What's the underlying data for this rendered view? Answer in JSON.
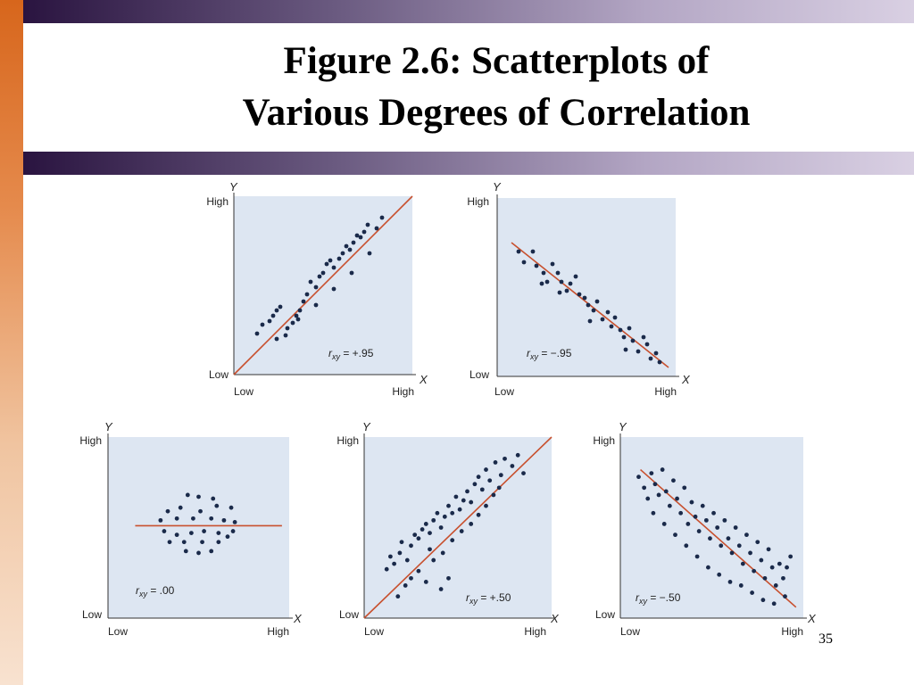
{
  "slide": {
    "title_lines": [
      "Figure 2.6: Scatterplots of",
      "Various Degrees of Correlation"
    ],
    "page_number": "35"
  },
  "colors": {
    "panel_background": "#dde6f2",
    "point": "#1a2a4a",
    "trend_line": "#c8502e",
    "header_band": "#5a4a72"
  },
  "chart_data": [
    {
      "type": "scatter",
      "xlabel": "X",
      "ylabel": "Y",
      "x_ticks": [
        "Low",
        "High"
      ],
      "y_ticks": [
        "Low",
        "High"
      ],
      "xlim": [
        0,
        1
      ],
      "ylim": [
        0,
        1
      ],
      "annotation": {
        "prefix": "r",
        "subscript": "xy",
        "value": " = +.95"
      },
      "trend_line": [
        [
          0.0,
          0.0
        ],
        [
          1.0,
          1.0
        ]
      ],
      "points": [
        [
          0.13,
          0.23
        ],
        [
          0.16,
          0.28
        ],
        [
          0.2,
          0.3
        ],
        [
          0.22,
          0.33
        ],
        [
          0.24,
          0.36
        ],
        [
          0.26,
          0.38
        ],
        [
          0.24,
          0.2
        ],
        [
          0.29,
          0.22
        ],
        [
          0.3,
          0.26
        ],
        [
          0.33,
          0.29
        ],
        [
          0.35,
          0.33
        ],
        [
          0.37,
          0.36
        ],
        [
          0.39,
          0.41
        ],
        [
          0.41,
          0.45
        ],
        [
          0.43,
          0.52
        ],
        [
          0.46,
          0.49
        ],
        [
          0.48,
          0.55
        ],
        [
          0.5,
          0.57
        ],
        [
          0.52,
          0.62
        ],
        [
          0.54,
          0.64
        ],
        [
          0.56,
          0.6
        ],
        [
          0.59,
          0.65
        ],
        [
          0.61,
          0.68
        ],
        [
          0.63,
          0.72
        ],
        [
          0.65,
          0.7
        ],
        [
          0.67,
          0.74
        ],
        [
          0.69,
          0.78
        ],
        [
          0.71,
          0.77
        ],
        [
          0.73,
          0.8
        ],
        [
          0.75,
          0.84
        ],
        [
          0.8,
          0.82
        ],
        [
          0.83,
          0.88
        ],
        [
          0.76,
          0.68
        ],
        [
          0.66,
          0.57
        ],
        [
          0.56,
          0.48
        ],
        [
          0.46,
          0.39
        ],
        [
          0.36,
          0.31
        ]
      ]
    },
    {
      "type": "scatter",
      "xlabel": "X",
      "ylabel": "Y",
      "x_ticks": [
        "Low",
        "High"
      ],
      "y_ticks": [
        "Low",
        "High"
      ],
      "xlim": [
        0,
        1
      ],
      "ylim": [
        0,
        1
      ],
      "annotation": {
        "prefix": "r",
        "subscript": "xy",
        "value": " = −.95"
      },
      "trend_line": [
        [
          0.08,
          0.75
        ],
        [
          0.96,
          0.05
        ]
      ],
      "points": [
        [
          0.12,
          0.7
        ],
        [
          0.15,
          0.64
        ],
        [
          0.2,
          0.7
        ],
        [
          0.22,
          0.62
        ],
        [
          0.26,
          0.58
        ],
        [
          0.28,
          0.53
        ],
        [
          0.31,
          0.63
        ],
        [
          0.34,
          0.58
        ],
        [
          0.36,
          0.53
        ],
        [
          0.39,
          0.48
        ],
        [
          0.41,
          0.52
        ],
        [
          0.44,
          0.56
        ],
        [
          0.46,
          0.46
        ],
        [
          0.49,
          0.44
        ],
        [
          0.51,
          0.4
        ],
        [
          0.54,
          0.37
        ],
        [
          0.56,
          0.42
        ],
        [
          0.59,
          0.32
        ],
        [
          0.62,
          0.36
        ],
        [
          0.64,
          0.28
        ],
        [
          0.66,
          0.33
        ],
        [
          0.69,
          0.26
        ],
        [
          0.71,
          0.22
        ],
        [
          0.74,
          0.27
        ],
        [
          0.76,
          0.2
        ],
        [
          0.79,
          0.14
        ],
        [
          0.82,
          0.22
        ],
        [
          0.84,
          0.18
        ],
        [
          0.86,
          0.1
        ],
        [
          0.89,
          0.13
        ],
        [
          0.91,
          0.08
        ],
        [
          0.52,
          0.31
        ],
        [
          0.72,
          0.15
        ],
        [
          0.35,
          0.47
        ],
        [
          0.25,
          0.52
        ]
      ]
    },
    {
      "type": "scatter",
      "xlabel": "X",
      "ylabel": "Y",
      "x_ticks": [
        "Low",
        "High"
      ],
      "y_ticks": [
        "Low",
        "High"
      ],
      "xlim": [
        0,
        1
      ],
      "ylim": [
        0,
        1
      ],
      "annotation": {
        "prefix": "r",
        "subscript": "xy",
        "value": " = .00"
      },
      "trend_line": [
        [
          0.15,
          0.51
        ],
        [
          0.96,
          0.51
        ]
      ],
      "points": [
        [
          0.44,
          0.68
        ],
        [
          0.5,
          0.67
        ],
        [
          0.58,
          0.66
        ],
        [
          0.33,
          0.59
        ],
        [
          0.4,
          0.61
        ],
        [
          0.51,
          0.59
        ],
        [
          0.6,
          0.62
        ],
        [
          0.68,
          0.61
        ],
        [
          0.29,
          0.54
        ],
        [
          0.38,
          0.55
        ],
        [
          0.47,
          0.55
        ],
        [
          0.57,
          0.55
        ],
        [
          0.64,
          0.54
        ],
        [
          0.7,
          0.53
        ],
        [
          0.31,
          0.48
        ],
        [
          0.38,
          0.46
        ],
        [
          0.46,
          0.47
        ],
        [
          0.53,
          0.48
        ],
        [
          0.61,
          0.47
        ],
        [
          0.69,
          0.48
        ],
        [
          0.34,
          0.42
        ],
        [
          0.42,
          0.42
        ],
        [
          0.52,
          0.42
        ],
        [
          0.61,
          0.42
        ],
        [
          0.66,
          0.45
        ],
        [
          0.43,
          0.37
        ],
        [
          0.5,
          0.36
        ],
        [
          0.57,
          0.37
        ]
      ]
    },
    {
      "type": "scatter",
      "xlabel": "X",
      "ylabel": "Y",
      "x_ticks": [
        "Low",
        "High"
      ],
      "y_ticks": [
        "Low",
        "High"
      ],
      "xlim": [
        0,
        1
      ],
      "ylim": [
        0,
        1
      ],
      "annotation": {
        "prefix": "r",
        "subscript": "xy",
        "value": " = +.50"
      },
      "trend_line": [
        [
          0.0,
          0.0
        ],
        [
          1.0,
          1.0
        ]
      ],
      "points": [
        [
          0.12,
          0.27
        ],
        [
          0.14,
          0.34
        ],
        [
          0.16,
          0.3
        ],
        [
          0.19,
          0.36
        ],
        [
          0.2,
          0.42
        ],
        [
          0.23,
          0.32
        ],
        [
          0.25,
          0.4
        ],
        [
          0.27,
          0.46
        ],
        [
          0.29,
          0.44
        ],
        [
          0.31,
          0.49
        ],
        [
          0.33,
          0.52
        ],
        [
          0.35,
          0.47
        ],
        [
          0.37,
          0.54
        ],
        [
          0.39,
          0.58
        ],
        [
          0.41,
          0.5
        ],
        [
          0.43,
          0.56
        ],
        [
          0.45,
          0.62
        ],
        [
          0.47,
          0.58
        ],
        [
          0.49,
          0.67
        ],
        [
          0.51,
          0.6
        ],
        [
          0.53,
          0.65
        ],
        [
          0.55,
          0.7
        ],
        [
          0.57,
          0.64
        ],
        [
          0.59,
          0.74
        ],
        [
          0.61,
          0.78
        ],
        [
          0.63,
          0.71
        ],
        [
          0.65,
          0.82
        ],
        [
          0.67,
          0.76
        ],
        [
          0.7,
          0.86
        ],
        [
          0.73,
          0.79
        ],
        [
          0.75,
          0.88
        ],
        [
          0.79,
          0.84
        ],
        [
          0.82,
          0.9
        ],
        [
          0.85,
          0.8
        ],
        [
          0.29,
          0.26
        ],
        [
          0.33,
          0.2
        ],
        [
          0.37,
          0.32
        ],
        [
          0.42,
          0.36
        ],
        [
          0.47,
          0.43
        ],
        [
          0.52,
          0.48
        ],
        [
          0.57,
          0.52
        ],
        [
          0.61,
          0.57
        ],
        [
          0.65,
          0.62
        ],
        [
          0.69,
          0.68
        ],
        [
          0.72,
          0.72
        ],
        [
          0.22,
          0.18
        ],
        [
          0.18,
          0.12
        ],
        [
          0.25,
          0.22
        ],
        [
          0.41,
          0.16
        ],
        [
          0.45,
          0.22
        ],
        [
          0.35,
          0.38
        ]
      ]
    },
    {
      "type": "scatter",
      "xlabel": "X",
      "ylabel": "Y",
      "x_ticks": [
        "Low",
        "High"
      ],
      "y_ticks": [
        "Low",
        "High"
      ],
      "xlim": [
        0,
        1
      ],
      "ylim": [
        0,
        1
      ],
      "annotation": {
        "prefix": "r",
        "subscript": "xy",
        "value": " = −.50"
      },
      "trend_line": [
        [
          0.11,
          0.82
        ],
        [
          0.96,
          0.06
        ]
      ],
      "points": [
        [
          0.1,
          0.78
        ],
        [
          0.13,
          0.72
        ],
        [
          0.15,
          0.66
        ],
        [
          0.17,
          0.8
        ],
        [
          0.19,
          0.74
        ],
        [
          0.21,
          0.68
        ],
        [
          0.23,
          0.82
        ],
        [
          0.25,
          0.7
        ],
        [
          0.27,
          0.62
        ],
        [
          0.29,
          0.76
        ],
        [
          0.31,
          0.66
        ],
        [
          0.33,
          0.58
        ],
        [
          0.35,
          0.72
        ],
        [
          0.37,
          0.52
        ],
        [
          0.39,
          0.64
        ],
        [
          0.41,
          0.56
        ],
        [
          0.43,
          0.48
        ],
        [
          0.45,
          0.62
        ],
        [
          0.47,
          0.54
        ],
        [
          0.49,
          0.44
        ],
        [
          0.51,
          0.58
        ],
        [
          0.53,
          0.5
        ],
        [
          0.55,
          0.4
        ],
        [
          0.57,
          0.54
        ],
        [
          0.59,
          0.44
        ],
        [
          0.61,
          0.36
        ],
        [
          0.63,
          0.5
        ],
        [
          0.65,
          0.4
        ],
        [
          0.67,
          0.3
        ],
        [
          0.69,
          0.46
        ],
        [
          0.71,
          0.36
        ],
        [
          0.73,
          0.26
        ],
        [
          0.75,
          0.42
        ],
        [
          0.77,
          0.32
        ],
        [
          0.79,
          0.22
        ],
        [
          0.81,
          0.38
        ],
        [
          0.83,
          0.28
        ],
        [
          0.85,
          0.18
        ],
        [
          0.87,
          0.3
        ],
        [
          0.89,
          0.22
        ],
        [
          0.91,
          0.28
        ],
        [
          0.93,
          0.34
        ],
        [
          0.18,
          0.58
        ],
        [
          0.24,
          0.52
        ],
        [
          0.3,
          0.46
        ],
        [
          0.36,
          0.4
        ],
        [
          0.42,
          0.34
        ],
        [
          0.48,
          0.28
        ],
        [
          0.54,
          0.24
        ],
        [
          0.6,
          0.2
        ],
        [
          0.66,
          0.18
        ],
        [
          0.72,
          0.14
        ],
        [
          0.78,
          0.1
        ],
        [
          0.84,
          0.08
        ],
        [
          0.9,
          0.12
        ]
      ]
    }
  ]
}
